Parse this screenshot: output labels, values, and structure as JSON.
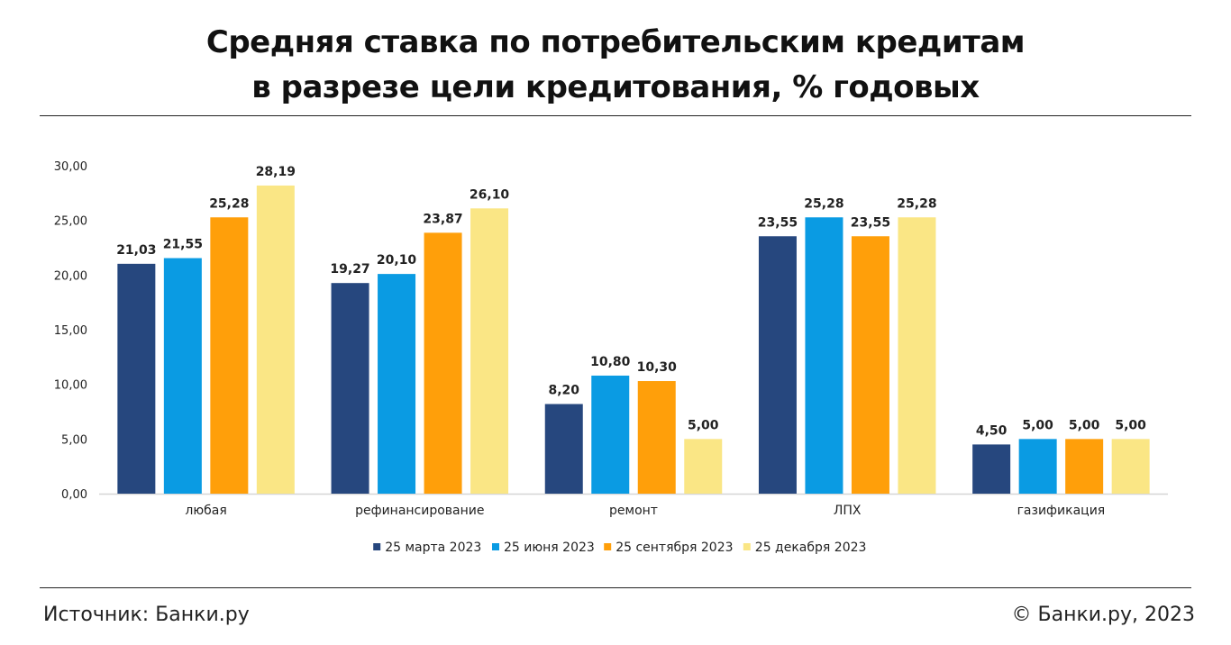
{
  "header": {
    "title_line1": "Средняя ставка по потребительским кредитам",
    "title_line2": "в разрезе цели кредитования, % годовых"
  },
  "footer": {
    "source": "Источник: Банки.ру",
    "copyright": "© Банки.ру, 2023"
  },
  "chart_data": {
    "type": "bar",
    "categories": [
      "любая",
      "рефинансирование",
      "ремонт",
      "ЛПХ",
      "газификация"
    ],
    "series": [
      {
        "name": "25 марта 2023",
        "color": "#26477e",
        "values": [
          21.03,
          19.27,
          8.2,
          23.55,
          4.5
        ]
      },
      {
        "name": "25 июня 2023",
        "color": "#0a9be3",
        "values": [
          21.55,
          20.1,
          10.8,
          25.28,
          5.0
        ]
      },
      {
        "name": "25 сентября 2023",
        "color": "#ff9f0a",
        "values": [
          25.28,
          23.87,
          10.3,
          23.55,
          5.0
        ]
      },
      {
        "name": "25 декабря 2023",
        "color": "#fae685",
        "values": [
          28.19,
          26.1,
          5.0,
          25.28,
          5.0
        ]
      }
    ],
    "ylim": [
      0,
      30
    ],
    "yticks": [
      "0,00",
      "5,00",
      "10,00",
      "15,00",
      "20,00",
      "25,00",
      "30,00"
    ],
    "data_labels": [
      [
        "21,03",
        "19,27",
        "8,20",
        "23,55",
        "4,50"
      ],
      [
        "21,55",
        "20,10",
        "10,80",
        "25,28",
        "5,00"
      ],
      [
        "25,28",
        "23,87",
        "10,30",
        "23,55",
        "5,00"
      ],
      [
        "28,19",
        "26,10",
        "5,00",
        "25,28",
        "5,00"
      ]
    ],
    "grid": false,
    "legend_position": "bottom"
  }
}
